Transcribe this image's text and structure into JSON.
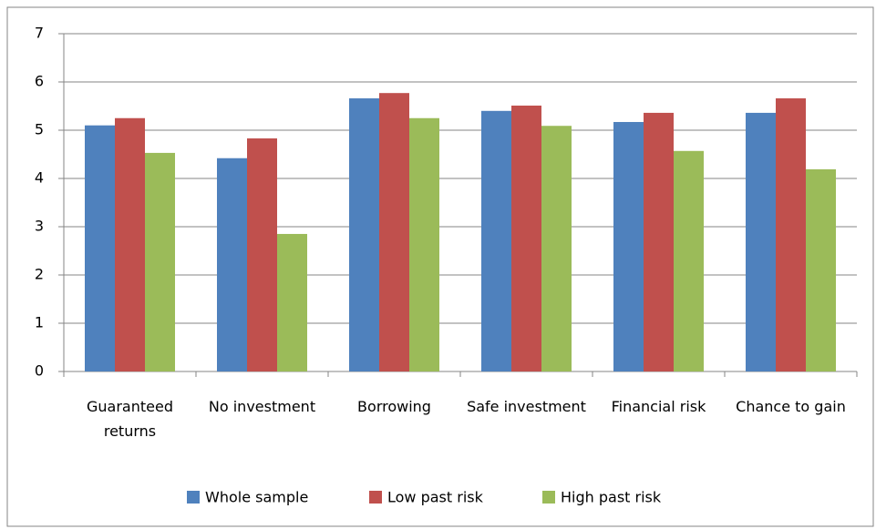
{
  "chart_data": {
    "type": "bar",
    "categories": [
      "Guaranteed returns",
      "No investment",
      "Borrowing",
      "Safe investment",
      "Financial risk",
      "Chance to gain"
    ],
    "series": [
      {
        "name": "Whole sample",
        "color": "#4f81bd",
        "values": [
          5.1,
          4.42,
          5.66,
          5.4,
          5.17,
          5.36
        ]
      },
      {
        "name": "Low past risk",
        "color": "#c0504d",
        "values": [
          5.25,
          4.83,
          5.77,
          5.51,
          5.36,
          5.66
        ]
      },
      {
        "name": "High past risk",
        "color": "#9bbb59",
        "values": [
          4.53,
          2.85,
          5.25,
          5.09,
          4.57,
          4.19
        ]
      }
    ],
    "ylim": [
      0,
      7
    ],
    "yticks": [
      0,
      1,
      2,
      3,
      4,
      5,
      6,
      7
    ],
    "grid": true,
    "legend": "bottom"
  }
}
